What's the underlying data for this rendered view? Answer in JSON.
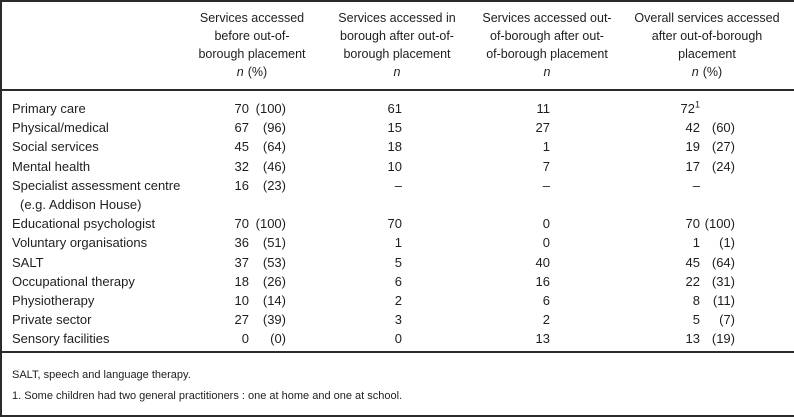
{
  "table": {
    "columns": [
      {
        "lines": [
          "Services accessed",
          "before out-of-",
          "borough placement"
        ],
        "n_label": "n",
        "pct_label": "(%)"
      },
      {
        "lines": [
          "Services accessed in",
          "borough after out-of-",
          "borough placement"
        ],
        "n_label": "n"
      },
      {
        "lines": [
          "Services accessed out-",
          "of-borough after out-",
          "of-borough placement"
        ],
        "n_label": "n"
      },
      {
        "lines": [
          "Overall services accessed",
          "after out-of-borough",
          "placement"
        ],
        "n_label": "n",
        "pct_label": "(%)"
      }
    ],
    "rows": [
      {
        "label": "Primary care",
        "before_n": "70",
        "before_pct": "(100)",
        "in_n": "61",
        "out_n": "11",
        "overall_n": "72",
        "overall_sup": "1"
      },
      {
        "label": "Physical/medical",
        "before_n": "67",
        "before_pct": "(96)",
        "in_n": "15",
        "out_n": "27",
        "overall_n": "42",
        "overall_pct": "(60)"
      },
      {
        "label": "Social services",
        "before_n": "45",
        "before_pct": "(64)",
        "in_n": "18",
        "out_n": "1",
        "overall_n": "19",
        "overall_pct": "(27)"
      },
      {
        "label": "Mental health",
        "before_n": "32",
        "before_pct": "(46)",
        "in_n": "10",
        "out_n": "7",
        "overall_n": "17",
        "overall_pct": "(24)"
      },
      {
        "label": "Specialist assessment centre",
        "label2": "(e.g. Addison House)",
        "before_n": "16",
        "before_pct": "(23)",
        "in_n": "–",
        "out_n": "–",
        "overall_n": "–"
      },
      {
        "label": "Educational psychologist",
        "before_n": "70",
        "before_pct": "(100)",
        "in_n": "70",
        "out_n": "0",
        "overall_n": "70",
        "overall_pct": "(100)"
      },
      {
        "label": "Voluntary organisations",
        "before_n": "36",
        "before_pct": "(51)",
        "in_n": "1",
        "out_n": "0",
        "overall_n": "1",
        "overall_pct": "(1)"
      },
      {
        "label": "SALT",
        "before_n": "37",
        "before_pct": "(53)",
        "in_n": "5",
        "out_n": "40",
        "overall_n": "45",
        "overall_pct": "(64)"
      },
      {
        "label": "Occupational therapy",
        "before_n": "18",
        "before_pct": "(26)",
        "in_n": "6",
        "out_n": "16",
        "overall_n": "22",
        "overall_pct": "(31)"
      },
      {
        "label": "Physiotherapy",
        "before_n": "10",
        "before_pct": "(14)",
        "in_n": "2",
        "out_n": "6",
        "overall_n": "8",
        "overall_pct": "(11)"
      },
      {
        "label": "Private sector",
        "before_n": "27",
        "before_pct": "(39)",
        "in_n": "3",
        "out_n": "2",
        "overall_n": "5",
        "overall_pct": "(7)"
      },
      {
        "label": "Sensory facilities",
        "before_n": "0",
        "before_pct": "(0)",
        "in_n": "0",
        "out_n": "13",
        "overall_n": "13",
        "overall_pct": "(19)"
      }
    ],
    "footnotes": [
      "SALT, speech and language therapy.",
      "1. Some children had two general practitioners : one at home and one at school."
    ]
  }
}
